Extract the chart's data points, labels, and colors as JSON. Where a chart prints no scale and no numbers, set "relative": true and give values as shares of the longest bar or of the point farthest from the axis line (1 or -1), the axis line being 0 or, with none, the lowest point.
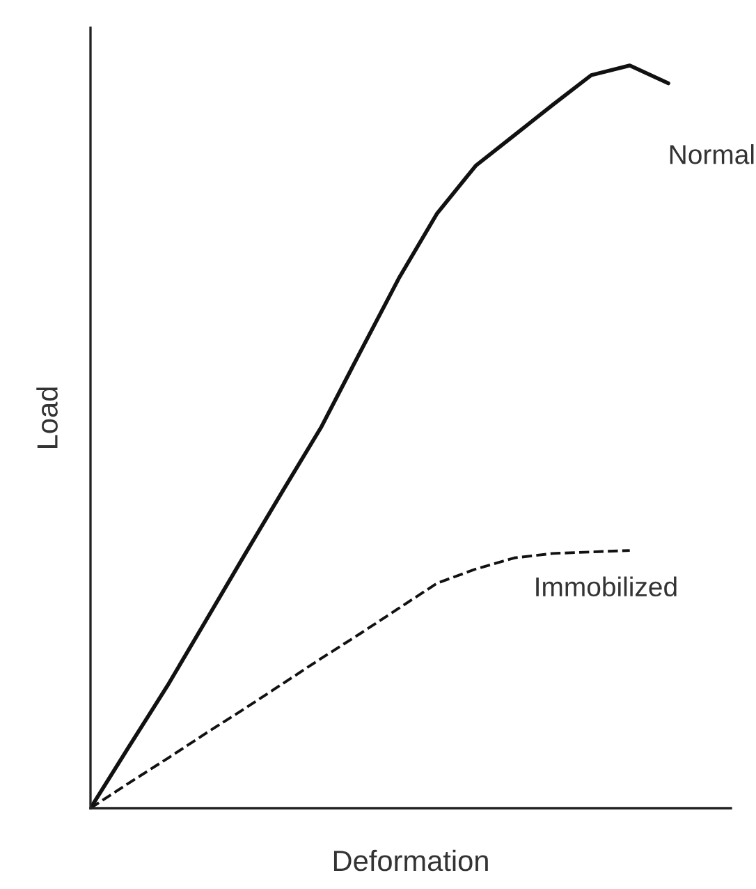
{
  "chart_data": {
    "type": "line",
    "relative": true,
    "xlabel": "Deformation",
    "ylabel": "Load",
    "legend": false,
    "marker": "none",
    "categories": [
      null,
      null,
      null,
      null,
      null,
      null,
      null,
      null,
      null,
      null,
      null,
      null,
      null,
      null,
      null,
      null
    ],
    "series": [
      {
        "name": "Normal",
        "color": "#111111",
        "line_style": "solid",
        "values": [
          0,
          0.083,
          0.165,
          0.253,
          0.341,
          0.428,
          0.514,
          0.614,
          0.713,
          0.801,
          0.865,
          0.906,
          0.947,
          0.987,
          1.0,
          0.976
        ]
      },
      {
        "name": "Immobilized",
        "color": "#111111",
        "line_style": "dashed",
        "values": [
          0,
          0.034,
          0.067,
          0.101,
          0.134,
          0.168,
          0.202,
          0.235,
          0.269,
          0.303,
          0.322,
          0.337,
          0.343,
          0.345,
          0.347,
          null
        ]
      }
    ]
  }
}
